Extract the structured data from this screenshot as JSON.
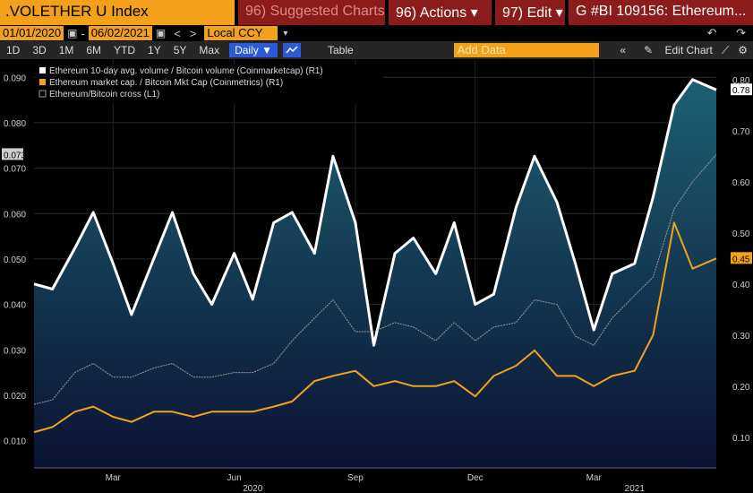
{
  "topbar": {
    "ticker": ".VOLETHER U Index",
    "suggested": "96) Suggested Charts",
    "actions": "96) Actions",
    "edit": "97) Edit",
    "title": "G #BI 109156: Ethereum..."
  },
  "daterow": {
    "start": "01/01/2020",
    "end": "06/02/2021",
    "currency": "Local CCY"
  },
  "toolbar": {
    "ranges": [
      "1D",
      "3D",
      "1M",
      "6M",
      "YTD",
      "1Y",
      "5Y",
      "Max"
    ],
    "frequency": "Daily",
    "table": "Table",
    "add_data_placeholder": "Add Data",
    "edit_chart": "Edit Chart"
  },
  "colors": {
    "ticker_bg": "#f3a01b",
    "button_red": "#8c1c1c",
    "volume_line": "#ffffff",
    "mktcap_line": "#f2a21b",
    "cross_line": "#9a9a9a",
    "area_top": "#1d6072",
    "area_bottom": "#0b1333"
  },
  "chart_data": {
    "type": "line",
    "legend": [
      "Ethereum 10-day avg. volume / Bitcoin volume (Coinmarketcap) (R1)",
      "Ethereum market cap. / Bitcoin Mkt Cap (Coinmetrics) (R1)",
      "Ethereum/Bitcoin cross (L1)"
    ],
    "legend_position": "top-left",
    "x_ticks": [
      "Mar",
      "Jun",
      "Sep",
      "Dec",
      "Mar"
    ],
    "x_years": [
      "2020",
      "2021"
    ],
    "left_axis": {
      "ticks": [
        "0.090",
        "0.080",
        "0.070",
        "0.060",
        "0.050",
        "0.040",
        "0.030",
        "0.020",
        "0.010"
      ],
      "range": [
        0.004,
        0.094
      ],
      "current_label": "0.073"
    },
    "right_axis": {
      "ticks": [
        "0.80",
        "0.70",
        "0.60",
        "0.50",
        "0.40",
        "0.30",
        "0.20",
        "0.10"
      ],
      "range": [
        0.04,
        0.84
      ],
      "labels_current": [
        "0.78",
        "0.45"
      ]
    },
    "x_range": [
      "2020-01-01",
      "2021-06-02"
    ],
    "grid": true,
    "series": [
      {
        "name": "Ethereum 10-day avg. volume / Bitcoin volume (Coinmarketcap) (R1)",
        "axis": "right",
        "x": [
          "2020-01-01",
          "2020-01-15",
          "2020-02-01",
          "2020-02-15",
          "2020-03-01",
          "2020-03-15",
          "2020-04-01",
          "2020-04-15",
          "2020-05-01",
          "2020-05-15",
          "2020-06-01",
          "2020-06-15",
          "2020-07-01",
          "2020-07-15",
          "2020-08-01",
          "2020-08-15",
          "2020-09-01",
          "2020-09-15",
          "2020-10-01",
          "2020-10-15",
          "2020-11-01",
          "2020-11-15",
          "2020-12-01",
          "2020-12-15",
          "2021-01-01",
          "2021-01-15",
          "2021-02-01",
          "2021-02-15",
          "2021-03-01",
          "2021-03-15",
          "2021-04-01",
          "2021-04-15",
          "2021-05-01",
          "2021-05-15",
          "2021-06-02"
        ],
        "values": [
          0.4,
          0.39,
          0.47,
          0.54,
          0.44,
          0.34,
          0.45,
          0.54,
          0.42,
          0.36,
          0.46,
          0.37,
          0.52,
          0.54,
          0.46,
          0.65,
          0.52,
          0.28,
          0.46,
          0.49,
          0.42,
          0.52,
          0.36,
          0.38,
          0.55,
          0.65,
          0.56,
          0.44,
          0.31,
          0.42,
          0.44,
          0.57,
          0.75,
          0.8,
          0.78
        ]
      },
      {
        "name": "Ethereum market cap. / Bitcoin Mkt Cap (Coinmetrics) (R1)",
        "axis": "right",
        "x": [
          "2020-01-01",
          "2020-01-15",
          "2020-02-01",
          "2020-02-15",
          "2020-03-01",
          "2020-03-15",
          "2020-04-01",
          "2020-04-15",
          "2020-05-01",
          "2020-05-15",
          "2020-06-01",
          "2020-06-15",
          "2020-07-01",
          "2020-07-15",
          "2020-08-01",
          "2020-08-15",
          "2020-09-01",
          "2020-09-15",
          "2020-10-01",
          "2020-10-15",
          "2020-11-01",
          "2020-11-15",
          "2020-12-01",
          "2020-12-15",
          "2021-01-01",
          "2021-01-15",
          "2021-02-01",
          "2021-02-15",
          "2021-03-01",
          "2021-03-15",
          "2021-04-01",
          "2021-04-15",
          "2021-05-01",
          "2021-05-15",
          "2021-06-02"
        ],
        "values": [
          0.11,
          0.12,
          0.15,
          0.16,
          0.14,
          0.13,
          0.15,
          0.15,
          0.14,
          0.15,
          0.15,
          0.15,
          0.16,
          0.17,
          0.21,
          0.22,
          0.23,
          0.2,
          0.21,
          0.2,
          0.2,
          0.21,
          0.18,
          0.22,
          0.24,
          0.27,
          0.22,
          0.22,
          0.2,
          0.22,
          0.23,
          0.3,
          0.52,
          0.43,
          0.45
        ]
      },
      {
        "name": "Ethereum/Bitcoin cross (L1)",
        "axis": "left",
        "x": [
          "2020-01-01",
          "2020-01-15",
          "2020-02-01",
          "2020-02-15",
          "2020-03-01",
          "2020-03-15",
          "2020-04-01",
          "2020-04-15",
          "2020-05-01",
          "2020-05-15",
          "2020-06-01",
          "2020-06-15",
          "2020-07-01",
          "2020-07-15",
          "2020-08-01",
          "2020-08-15",
          "2020-09-01",
          "2020-09-15",
          "2020-10-01",
          "2020-10-15",
          "2020-11-01",
          "2020-11-15",
          "2020-12-01",
          "2020-12-15",
          "2021-01-01",
          "2021-01-15",
          "2021-02-01",
          "2021-02-15",
          "2021-03-01",
          "2021-03-15",
          "2021-04-01",
          "2021-04-15",
          "2021-05-01",
          "2021-05-15",
          "2021-06-02"
        ],
        "values": [
          0.018,
          0.019,
          0.025,
          0.027,
          0.024,
          0.024,
          0.026,
          0.027,
          0.024,
          0.024,
          0.025,
          0.025,
          0.027,
          0.032,
          0.037,
          0.041,
          0.034,
          0.034,
          0.036,
          0.035,
          0.032,
          0.036,
          0.032,
          0.035,
          0.036,
          0.041,
          0.04,
          0.033,
          0.031,
          0.037,
          0.042,
          0.046,
          0.061,
          0.067,
          0.073
        ]
      }
    ]
  }
}
